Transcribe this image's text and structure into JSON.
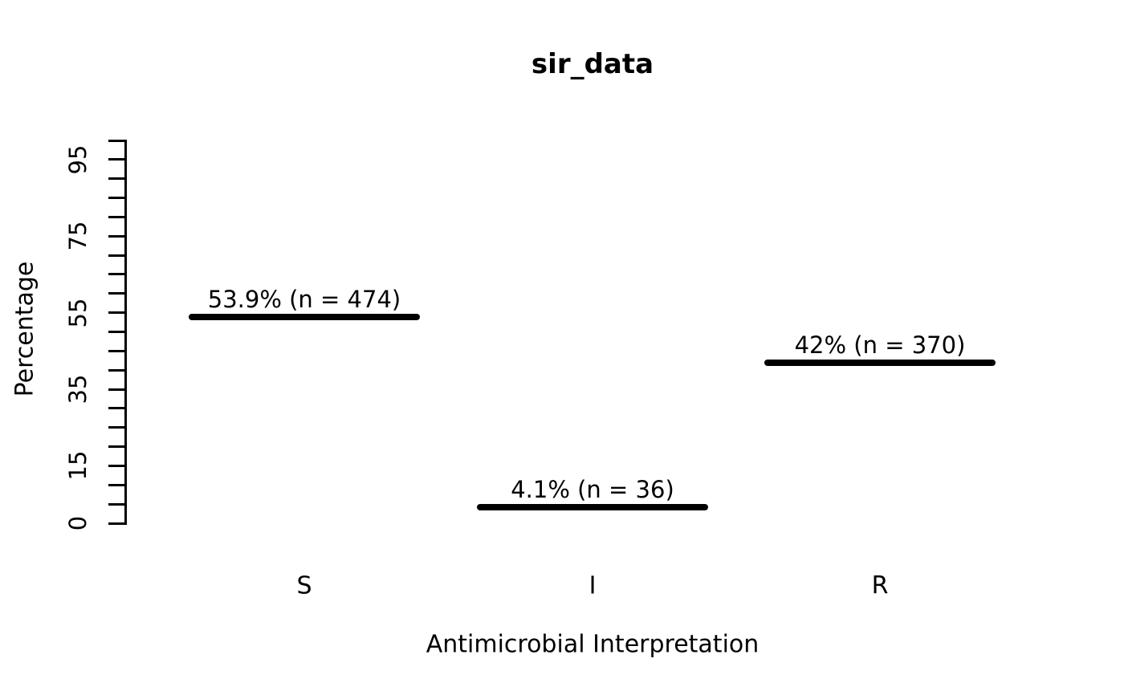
{
  "figure": {
    "background": "#ffffff",
    "ink": "#000000"
  },
  "chart_data": {
    "type": "bar",
    "title": "sir_data",
    "xlabel": "Antimicrobial Interpretation",
    "ylabel": "Percentage",
    "categories": [
      "S",
      "I",
      "R"
    ],
    "values": [
      53.9,
      4.1,
      42
    ],
    "counts": [
      474,
      36,
      370
    ],
    "point_labels": [
      "53.9% (n = 474)",
      "4.1% (n = 36)",
      "42% (n = 370)"
    ],
    "ylim": [
      0,
      100
    ],
    "y_tick_step": 5,
    "y_labeled_ticks": [
      0,
      15,
      35,
      55,
      75,
      95
    ],
    "grid": false,
    "legend_position": "none"
  }
}
